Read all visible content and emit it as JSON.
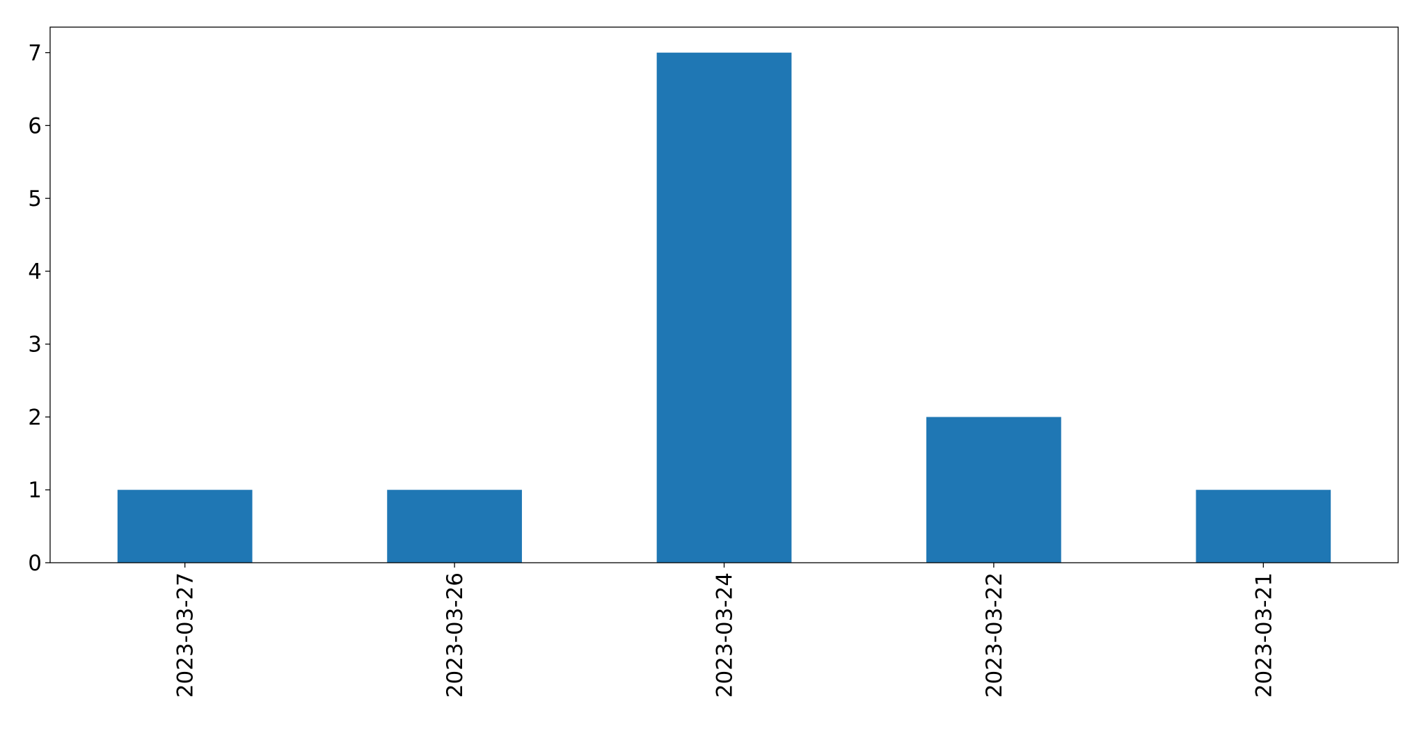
{
  "chart_data": {
    "type": "bar",
    "title": "",
    "xlabel": "",
    "ylabel": "",
    "categories": [
      "2023-03-27",
      "2023-03-26",
      "2023-03-24",
      "2023-03-22",
      "2023-03-21"
    ],
    "values": [
      1,
      1,
      7,
      2,
      1
    ],
    "ylim": [
      0,
      7.35
    ],
    "yticks": [
      "0",
      "1",
      "2",
      "3",
      "4",
      "5",
      "6",
      "7"
    ],
    "grid": false,
    "legend": "none",
    "bar_color": "#1f77b4",
    "x_tick_rotation": 90
  }
}
